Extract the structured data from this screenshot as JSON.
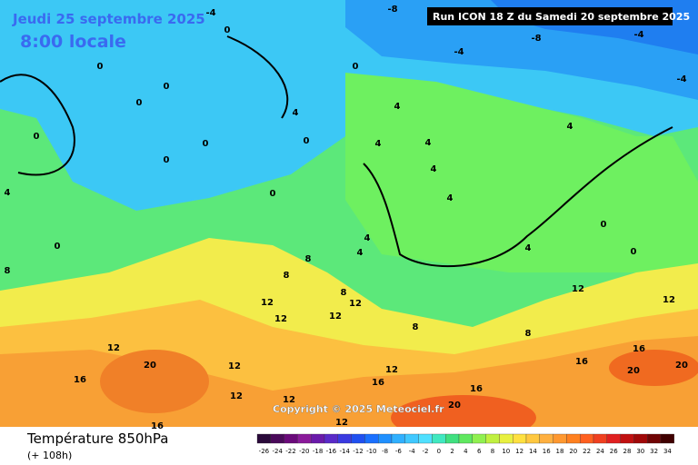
{
  "header": {
    "date": "Jeudi 25 septembre 2025",
    "time": "8:00 locale",
    "run": "Run ICON 18 Z du Samedi 20 septembre 2025"
  },
  "map": {
    "copyright": "Copyright © 2025 Meteociel.fr",
    "contour_labels": [
      -8,
      -8,
      -4,
      -4,
      -4,
      -4,
      0,
      0,
      0,
      0,
      0,
      0,
      0,
      0,
      0,
      0,
      0,
      4,
      4,
      4,
      4,
      4,
      4,
      4,
      4,
      4,
      4,
      4,
      0,
      0,
      8,
      8,
      8,
      8,
      8,
      8,
      12,
      12,
      12,
      12,
      12,
      12,
      12,
      12,
      12,
      12,
      12,
      12,
      16,
      16,
      16,
      16,
      16,
      16,
      20,
      20,
      20,
      20
    ]
  },
  "footer": {
    "title": "Température 850hPa",
    "lead": "(+ 108h)",
    "scale": [
      -26,
      -24,
      -22,
      -20,
      -18,
      -16,
      -14,
      -12,
      -10,
      -8,
      -6,
      -4,
      -2,
      0,
      2,
      4,
      6,
      8,
      10,
      12,
      14,
      16,
      18,
      20,
      22,
      24,
      26,
      28,
      30,
      32,
      34
    ],
    "colors": [
      "#2a0a3a",
      "#4a0a5a",
      "#6a0a7a",
      "#8a1a9a",
      "#6a1aaa",
      "#5a2ac8",
      "#3a3ae0",
      "#2050f0",
      "#1a70ff",
      "#2090ff",
      "#30b0ff",
      "#40c8ff",
      "#50e0ff",
      "#40e8c0",
      "#40e080",
      "#60e860",
      "#90f050",
      "#c0f040",
      "#e8f040",
      "#ffe040",
      "#ffc840",
      "#ffb040",
      "#ff9830",
      "#ff8020",
      "#ff6020",
      "#f04020",
      "#e02020",
      "#c01010",
      "#a00808",
      "#700404",
      "#400000"
    ]
  }
}
